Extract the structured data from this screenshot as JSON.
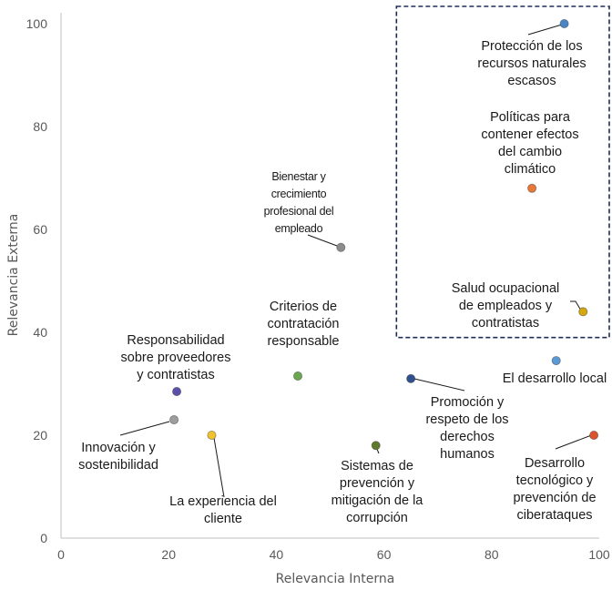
{
  "chart_data": {
    "type": "scatter",
    "xlabel": "Relevancia Interna",
    "ylabel": "Relevancia Externa",
    "xlim": [
      0,
      100
    ],
    "ylim": [
      0,
      100
    ],
    "xticks": [
      "0",
      "20",
      "40",
      "60",
      "80",
      "100"
    ],
    "yticks": [
      "0",
      "20",
      "40",
      "60",
      "80",
      "100"
    ],
    "grid": false,
    "highlight_region": {
      "x": [
        63,
        100
      ],
      "y": [
        39,
        100
      ],
      "style": "dashed"
    },
    "points": [
      {
        "x": 93.5,
        "y": 100,
        "color": "#4a86c6",
        "label": [
          "Protección de los",
          "recursos naturales",
          "escasos"
        ]
      },
      {
        "x": 87.5,
        "y": 68,
        "color": "#e9773a",
        "label": [
          "Políticas para",
          "contener efectos",
          "del cambio",
          "climático"
        ]
      },
      {
        "x": 97,
        "y": 44,
        "color": "#d4a80e",
        "label": [
          "Salud ocupacional",
          "de empleados y",
          "contratistas"
        ]
      },
      {
        "x": 52,
        "y": 56.5,
        "color": "#8c8c8c",
        "label": [
          "Bienestar y",
          "crecimiento",
          "profesional del",
          "empleado"
        ]
      },
      {
        "x": 44,
        "y": 31.5,
        "color": "#6aa84f",
        "label": [
          "Criterios de",
          "contratación",
          "responsable"
        ]
      },
      {
        "x": 21.5,
        "y": 28.5,
        "color": "#5a50a8",
        "label": [
          "Responsabilidad",
          "sobre proveedores",
          "y contratistas"
        ]
      },
      {
        "x": 21,
        "y": 23,
        "color": "#9d9d9d",
        "label": [
          "Innovación y",
          "sostenibilidad"
        ]
      },
      {
        "x": 28,
        "y": 20,
        "color": "#f2c12e",
        "label": [
          "La experiencia del",
          "cliente"
        ]
      },
      {
        "x": 58.5,
        "y": 18,
        "color": "#5e7a2a",
        "label": [
          "Sistemas de",
          "prevención y",
          "mitigación de la",
          "corrupción"
        ]
      },
      {
        "x": 65,
        "y": 31,
        "color": "#2f4f8f",
        "label": [
          "Promoción y",
          "respeto de los",
          "derechos",
          "humanos"
        ]
      },
      {
        "x": 92,
        "y": 34.5,
        "color": "#5b9bd5",
        "label": [
          "El desarrollo local"
        ]
      },
      {
        "x": 99,
        "y": 20,
        "color": "#d9542c",
        "label": [
          "Desarrollo",
          "tecnológico y",
          "prevención de",
          "ciberataques"
        ]
      }
    ]
  }
}
